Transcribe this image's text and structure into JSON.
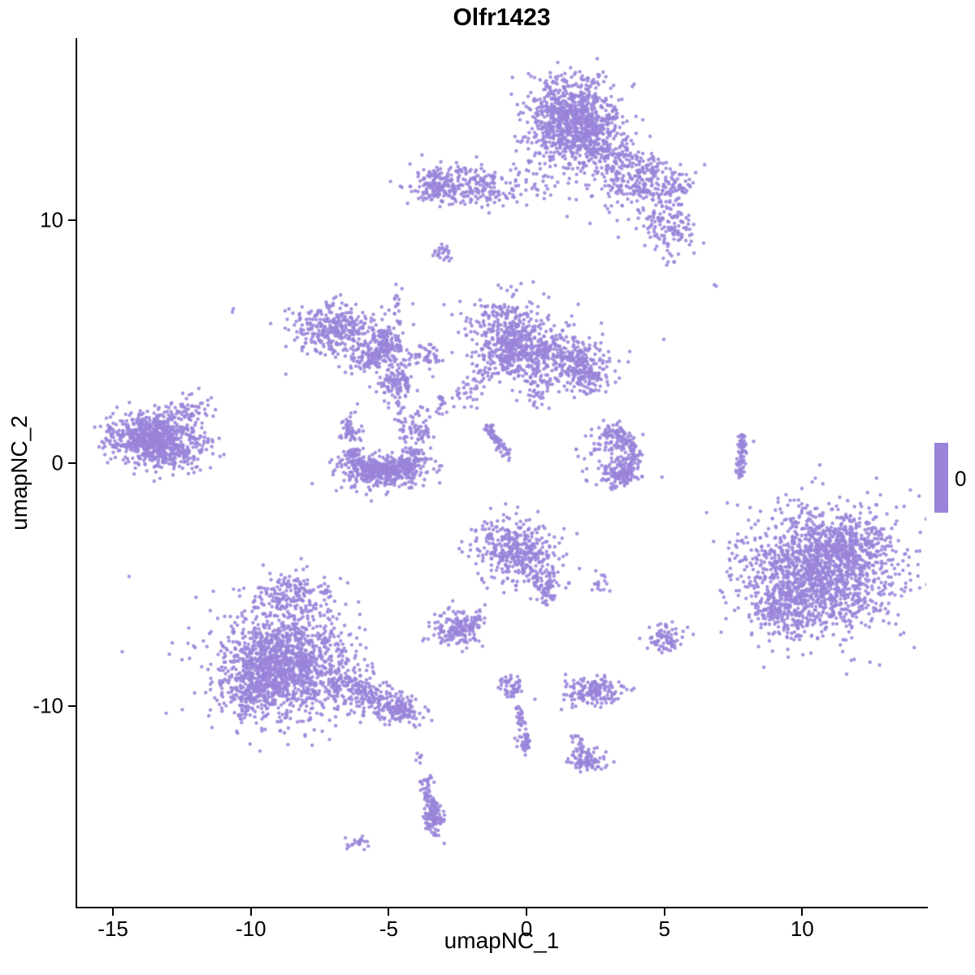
{
  "chart_data": {
    "type": "scatter",
    "title": "Olfr1423",
    "xlabel": "umapNC_1",
    "ylabel": "umapNC_2",
    "xlim": [
      -16.3,
      14.5
    ],
    "ylim": [
      -18.3,
      17.5
    ],
    "xticks": [
      -15,
      -10,
      -5,
      0,
      5,
      10
    ],
    "yticks": [
      -10,
      0,
      10
    ],
    "grid": false,
    "panel_background": "#ffffff",
    "axis_color": "#000000",
    "point_color": "#9A84D9",
    "point_radius": 2.2,
    "legend": {
      "label": "0",
      "position": "right",
      "swatch_color": "#9A84D9"
    },
    "clusters": [
      {
        "type": "gauss",
        "cx": 1.6,
        "cy": 14.2,
        "sx": 0.85,
        "sy": 0.85,
        "n": 850
      },
      {
        "type": "gauss",
        "cx": 2.4,
        "cy": 13.2,
        "sx": 0.6,
        "sy": 0.5,
        "n": 150
      },
      {
        "type": "gauss",
        "cx": 3.3,
        "cy": 12.3,
        "sx": 0.6,
        "sy": 0.55,
        "n": 120
      },
      {
        "type": "gauss",
        "cx": 4.4,
        "cy": 12.1,
        "sx": 0.3,
        "sy": 0.25,
        "n": 45
      },
      {
        "type": "gauss",
        "cx": 4.2,
        "cy": 11.2,
        "sx": 0.55,
        "sy": 0.5,
        "n": 110
      },
      {
        "type": "gauss",
        "cx": 5.5,
        "cy": 11.4,
        "sx": 0.35,
        "sy": 0.3,
        "n": 55
      },
      {
        "type": "gauss",
        "cx": 5.1,
        "cy": 9.8,
        "sx": 0.45,
        "sy": 0.5,
        "n": 120
      },
      {
        "type": "gauss",
        "cx": 5.1,
        "cy": 8.3,
        "sx": 0.15,
        "sy": 0.15,
        "n": 6
      },
      {
        "type": "gauss",
        "cx": 3.4,
        "cy": 11.6,
        "sx": 1.2,
        "sy": 1.0,
        "n": 60
      },
      {
        "type": "gauss",
        "cx": 0.4,
        "cy": 11.7,
        "sx": 0.5,
        "sy": 0.55,
        "n": 35
      },
      {
        "type": "gauss",
        "cx": -2.5,
        "cy": 11.5,
        "sx": 0.95,
        "sy": 0.4,
        "n": 240
      },
      {
        "type": "gauss",
        "cx": -3.3,
        "cy": 11.4,
        "sx": 0.25,
        "sy": 0.35,
        "n": 60
      },
      {
        "type": "gauss",
        "cx": -1.2,
        "cy": 11.2,
        "sx": 0.4,
        "sy": 0.3,
        "n": 40
      },
      {
        "type": "gauss",
        "cx": -3.0,
        "cy": 8.6,
        "sx": 0.18,
        "sy": 0.22,
        "n": 25
      },
      {
        "type": "gauss",
        "cx": -10.6,
        "cy": 6.3,
        "sx": 0.05,
        "sy": 0.05,
        "n": 2
      },
      {
        "type": "gauss",
        "cx": 6.8,
        "cy": 7.3,
        "sx": 0.05,
        "sy": 0.05,
        "n": 2
      },
      {
        "type": "gauss",
        "cx": -7.0,
        "cy": 5.5,
        "sx": 0.75,
        "sy": 0.5,
        "n": 300
      },
      {
        "type": "arc",
        "cx": -6.1,
        "cy": 5.1,
        "r": 1.0,
        "a0": 250,
        "a1": 385,
        "jr": 0.18,
        "n": 110
      },
      {
        "type": "gauss",
        "cx": -5.3,
        "cy": 4.5,
        "sx": 0.4,
        "sy": 0.35,
        "n": 80
      },
      {
        "type": "gauss",
        "cx": -6.1,
        "cy": 5.3,
        "sx": 1.1,
        "sy": 0.8,
        "n": 60
      },
      {
        "type": "line",
        "x0": -4.6,
        "y0": 4.7,
        "x1": -4.8,
        "y1": 7.4,
        "jr": 0.12,
        "n": 30
      },
      {
        "type": "gauss",
        "cx": -4.0,
        "cy": 4.4,
        "sx": 0.3,
        "sy": 0.2,
        "n": 25
      },
      {
        "type": "gauss",
        "cx": -3.4,
        "cy": 4.4,
        "sx": 0.25,
        "sy": 0.2,
        "n": 28
      },
      {
        "type": "gauss",
        "cx": -4.75,
        "cy": 3.3,
        "sx": 0.3,
        "sy": 0.38,
        "n": 110
      },
      {
        "type": "line",
        "x0": -4.7,
        "y0": 2.8,
        "x1": -4.45,
        "y1": 1.0,
        "jr": 0.1,
        "n": 28
      },
      {
        "type": "gauss",
        "cx": -3.05,
        "cy": 2.45,
        "sx": 0.15,
        "sy": 0.2,
        "n": 18
      },
      {
        "type": "gauss",
        "cx": -0.8,
        "cy": 5.2,
        "sx": 0.65,
        "sy": 0.85,
        "n": 400
      },
      {
        "type": "gauss",
        "cx": 0.6,
        "cy": 4.4,
        "sx": 0.8,
        "sy": 0.55,
        "n": 300
      },
      {
        "type": "gauss",
        "cx": 2.0,
        "cy": 4.1,
        "sx": 0.5,
        "sy": 0.5,
        "n": 170
      },
      {
        "type": "gauss",
        "cx": 2.3,
        "cy": 3.3,
        "sx": 0.3,
        "sy": 0.3,
        "n": 40
      },
      {
        "type": "gauss",
        "cx": 0.5,
        "cy": 3.0,
        "sx": 0.3,
        "sy": 0.3,
        "n": 35
      },
      {
        "type": "gauss",
        "cx": 0.5,
        "cy": 4.9,
        "sx": 1.3,
        "sy": 0.95,
        "n": 80
      },
      {
        "type": "line",
        "x0": -2.4,
        "y0": 2.6,
        "x1": -1.4,
        "y1": 3.9,
        "jr": 0.24,
        "n": 45
      },
      {
        "type": "line",
        "x0": -1.45,
        "y0": 1.5,
        "x1": -0.6,
        "y1": 0.2,
        "jr": 0.1,
        "n": 70
      },
      {
        "type": "gauss",
        "cx": -13.6,
        "cy": 1.1,
        "sx": 0.8,
        "sy": 0.5,
        "n": 650
      },
      {
        "type": "gauss",
        "cx": -12.9,
        "cy": 0.4,
        "sx": 0.55,
        "sy": 0.35,
        "n": 130
      },
      {
        "type": "gauss",
        "cx": -12.3,
        "cy": 2.2,
        "sx": 0.4,
        "sy": 0.3,
        "n": 60
      },
      {
        "type": "gauss",
        "cx": -13.3,
        "cy": 1.0,
        "sx": 1.1,
        "sy": 0.75,
        "n": 60
      },
      {
        "type": "arc",
        "cx": -5.15,
        "cy": 0.9,
        "r": 1.35,
        "a0": 195,
        "a1": 345,
        "jr": 0.24,
        "n": 330
      },
      {
        "type": "gauss",
        "cx": -5.15,
        "cy": -0.35,
        "sx": 0.8,
        "sy": 0.33,
        "n": 300
      },
      {
        "type": "gauss",
        "cx": -6.4,
        "cy": 1.3,
        "sx": 0.22,
        "sy": 0.4,
        "n": 55
      },
      {
        "type": "gauss",
        "cx": -3.9,
        "cy": 1.4,
        "sx": 0.22,
        "sy": 0.4,
        "n": 55
      },
      {
        "type": "arc",
        "cx": 2.9,
        "cy": 0.3,
        "r": 1.0,
        "a0": -75,
        "a1": 95,
        "jr": 0.2,
        "n": 190
      },
      {
        "type": "gauss",
        "cx": 3.3,
        "cy": -0.4,
        "sx": 0.4,
        "sy": 0.3,
        "n": 80
      },
      {
        "type": "gauss",
        "cx": 2.7,
        "cy": 0.5,
        "sx": 0.45,
        "sy": 0.55,
        "n": 50
      },
      {
        "type": "line",
        "x0": 7.85,
        "y0": 1.1,
        "x1": 7.7,
        "y1": -0.6,
        "jr": 0.08,
        "n": 70
      },
      {
        "type": "gauss",
        "cx": 10.6,
        "cy": -4.5,
        "sx": 1.35,
        "sy": 1.25,
        "n": 1450
      },
      {
        "type": "gauss",
        "cx": 9.4,
        "cy": -6.0,
        "sx": 0.6,
        "sy": 0.55,
        "n": 180
      },
      {
        "type": "gauss",
        "cx": 11.8,
        "cy": -3.3,
        "sx": 0.65,
        "sy": 0.55,
        "n": 180
      },
      {
        "type": "gauss",
        "cx": 10.5,
        "cy": -4.4,
        "sx": 1.9,
        "sy": 1.6,
        "n": 120
      },
      {
        "type": "gauss",
        "cx": -0.4,
        "cy": -3.6,
        "sx": 0.75,
        "sy": 0.65,
        "n": 400
      },
      {
        "type": "gauss",
        "cx": 0.7,
        "cy": -5.0,
        "sx": 0.3,
        "sy": 0.4,
        "n": 60
      },
      {
        "type": "line",
        "x0": 0.3,
        "y0": -4.5,
        "x1": 0.9,
        "y1": -5.6,
        "jr": 0.13,
        "n": 25
      },
      {
        "type": "gauss",
        "cx": 2.7,
        "cy": -4.8,
        "sx": 0.15,
        "sy": 0.22,
        "n": 16
      },
      {
        "type": "gauss",
        "cx": -2.5,
        "cy": -6.8,
        "sx": 0.5,
        "sy": 0.35,
        "n": 170
      },
      {
        "type": "gauss",
        "cx": -1.7,
        "cy": -6.3,
        "sx": 0.15,
        "sy": 0.15,
        "n": 12
      },
      {
        "type": "gauss",
        "cx": -8.7,
        "cy": -8.3,
        "sx": 1.15,
        "sy": 1.05,
        "n": 1250
      },
      {
        "type": "gauss",
        "cx": -9.9,
        "cy": -9.2,
        "sx": 0.55,
        "sy": 0.6,
        "n": 220
      },
      {
        "type": "gauss",
        "cx": -8.5,
        "cy": -5.4,
        "sx": 0.7,
        "sy": 0.4,
        "n": 170
      },
      {
        "type": "gauss",
        "cx": -8.6,
        "cy": -8.0,
        "sx": 1.8,
        "sy": 1.6,
        "n": 120
      },
      {
        "type": "line",
        "x0": -7.0,
        "y0": -8.9,
        "x1": -4.7,
        "y1": -10.1,
        "jr": 0.35,
        "n": 260
      },
      {
        "type": "gauss",
        "cx": -4.4,
        "cy": -10.15,
        "sx": 0.35,
        "sy": 0.3,
        "n": 90
      },
      {
        "type": "gauss",
        "cx": 5.0,
        "cy": -7.2,
        "sx": 0.33,
        "sy": 0.28,
        "n": 80
      },
      {
        "type": "gauss",
        "cx": 2.4,
        "cy": -9.4,
        "sx": 0.55,
        "sy": 0.28,
        "n": 170
      },
      {
        "type": "gauss",
        "cx": -0.6,
        "cy": -9.2,
        "sx": 0.22,
        "sy": 0.33,
        "n": 55
      },
      {
        "type": "line",
        "x0": -0.35,
        "y0": -10.0,
        "x1": -0.05,
        "y1": -11.4,
        "jr": 0.09,
        "n": 40
      },
      {
        "type": "gauss",
        "cx": -0.1,
        "cy": -11.5,
        "sx": 0.13,
        "sy": 0.2,
        "n": 28
      },
      {
        "type": "gauss",
        "cx": 2.2,
        "cy": -12.25,
        "sx": 0.35,
        "sy": 0.25,
        "n": 90
      },
      {
        "type": "line",
        "x0": 1.7,
        "y0": -11.1,
        "x1": 2.0,
        "y1": -11.9,
        "jr": 0.1,
        "n": 18
      },
      {
        "type": "line",
        "x0": -3.7,
        "y0": -12.9,
        "x1": -3.3,
        "y1": -14.6,
        "jr": 0.13,
        "n": 70
      },
      {
        "type": "gauss",
        "cx": -3.35,
        "cy": -14.75,
        "sx": 0.2,
        "sy": 0.3,
        "n": 80
      },
      {
        "type": "gauss",
        "cx": -3.95,
        "cy": -12.25,
        "sx": 0.08,
        "sy": 0.15,
        "n": 6
      },
      {
        "type": "gauss",
        "cx": -6.1,
        "cy": -15.7,
        "sx": 0.25,
        "sy": 0.12,
        "n": 22
      }
    ]
  }
}
